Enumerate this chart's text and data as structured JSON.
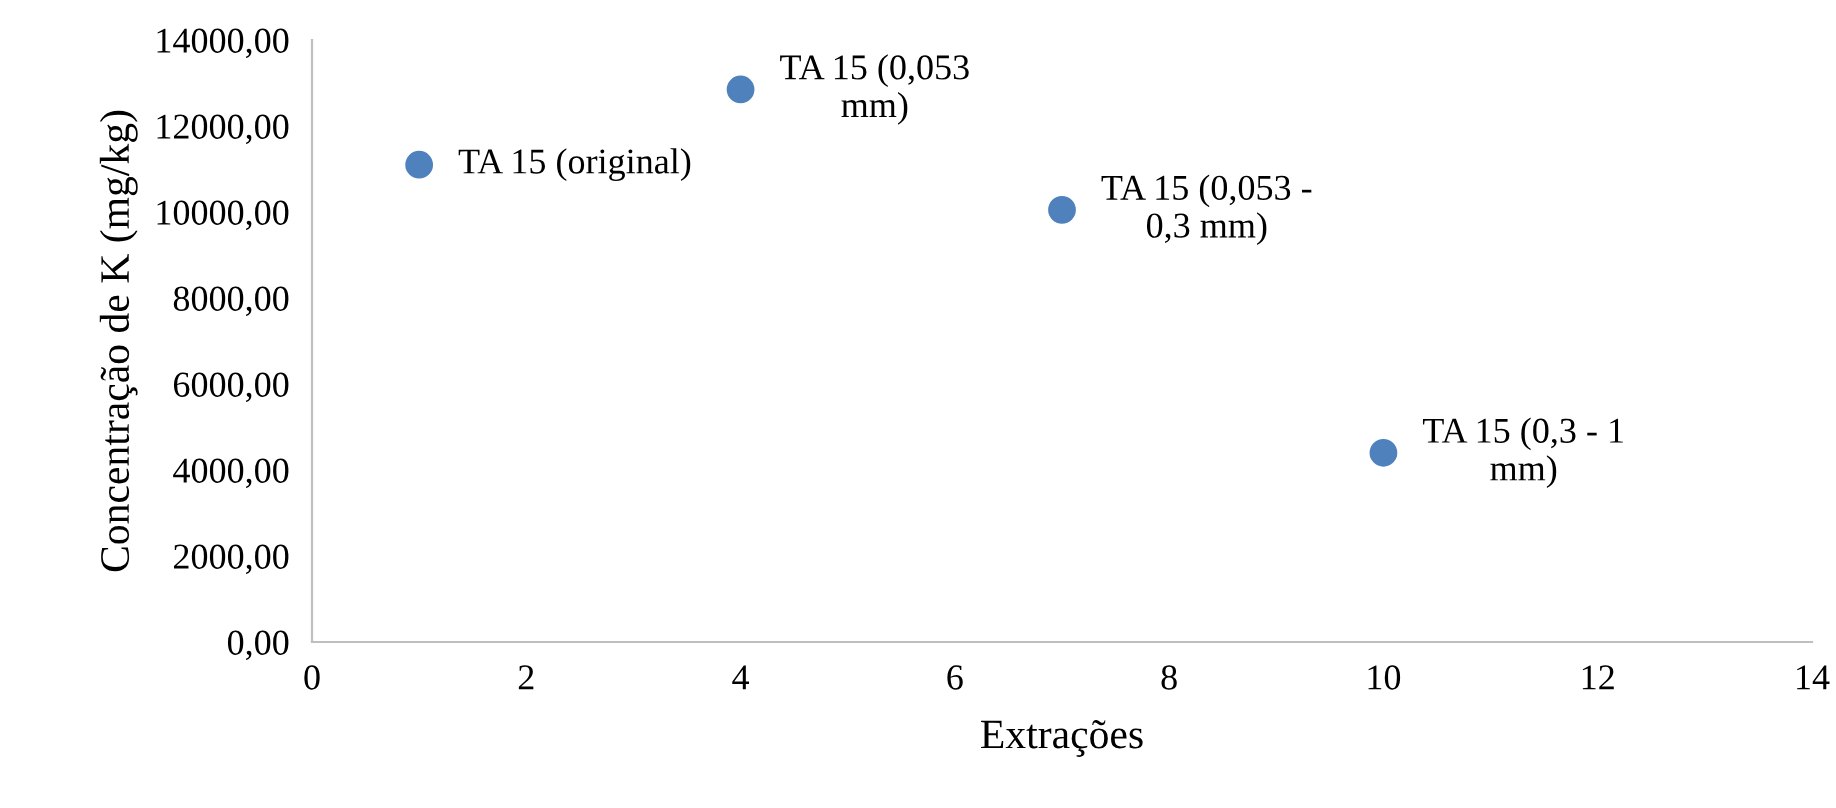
{
  "chart_data": {
    "type": "scatter",
    "xlabel": "Extrações",
    "ylabel": "Concentração de K (mg/kg)",
    "x": [
      1,
      4,
      7,
      10
    ],
    "series": [
      {
        "color": "#4f81bd",
        "values": [
          11100,
          12850,
          10050,
          4400
        ]
      }
    ],
    "marker": "circle",
    "grid": false,
    "legend": false,
    "xlim": [
      0,
      14
    ],
    "xticks": [
      0,
      2,
      4,
      6,
      8,
      10,
      12,
      14
    ],
    "ylim": [
      0,
      14000
    ],
    "yticks": [
      {
        "value": 0,
        "label": "0,00"
      },
      {
        "value": 2000,
        "label": "2000,00"
      },
      {
        "value": 4000,
        "label": "4000,00"
      },
      {
        "value": 6000,
        "label": "6000,00"
      },
      {
        "value": 8000,
        "label": "8000,00"
      },
      {
        "value": 10000,
        "label": "10000,00"
      },
      {
        "value": 12000,
        "label": "12000,00"
      },
      {
        "value": 14000,
        "label": "14000,00"
      }
    ],
    "annotations": [
      {
        "text": "TA 15 (original)",
        "x": 1,
        "y": 11100
      },
      {
        "text": "TA 15 (0,053\nmm)",
        "x": 4,
        "y": 12850
      },
      {
        "text": "TA 15 (0,053 -\n0,3 mm)",
        "x": 7,
        "y": 10050
      },
      {
        "text": "TA 15 (0,3 - 1\nmm)",
        "x": 10,
        "y": 4400
      }
    ]
  }
}
